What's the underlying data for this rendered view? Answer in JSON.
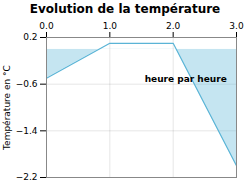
{
  "chart_data": {
    "type": "line",
    "title": "Evolution de la température",
    "ylabel": "Température en °C",
    "x": [
      0,
      1,
      2,
      3
    ],
    "series": [
      {
        "values": [
          -0.5,
          0.1,
          0.1,
          -2.0
        ],
        "color": "#5ab4d6"
      }
    ],
    "xlim": [
      0,
      3
    ],
    "ylim": [
      -2.2,
      0.2
    ],
    "xticks": [
      0,
      1,
      2,
      3
    ],
    "yticks": [
      0.2,
      -0.6,
      -1.4,
      -2.2
    ],
    "grid": true,
    "annotations": [
      {
        "text": "heure par heure",
        "x": 1.55,
        "y": -0.52
      }
    ]
  }
}
